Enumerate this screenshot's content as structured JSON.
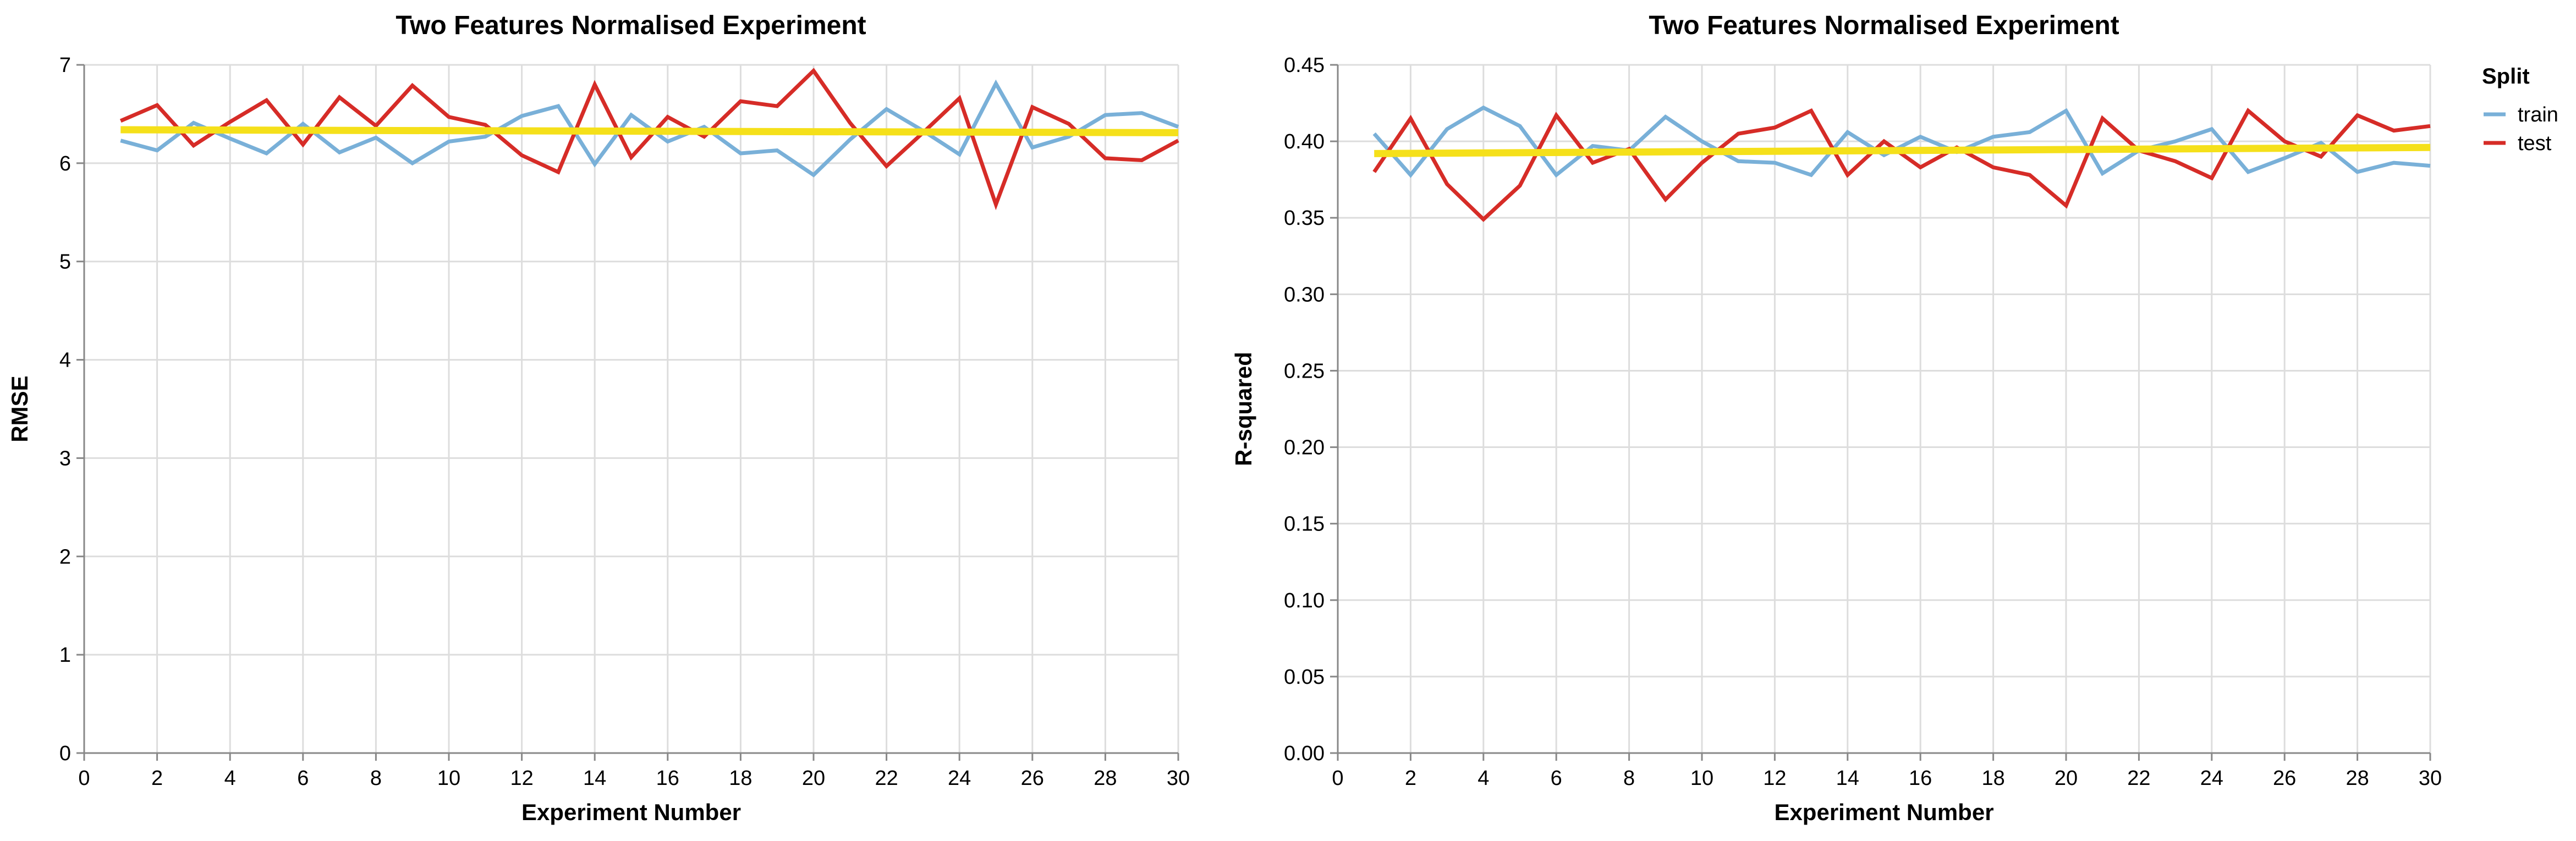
{
  "chart_data": [
    {
      "type": "line",
      "title": "Two Features Normalised Experiment",
      "xlabel": "Experiment Number",
      "ylabel": "RMSE",
      "xlim": [
        0,
        30
      ],
      "ylim": [
        0,
        7
      ],
      "x_ticks": [
        "0",
        "2",
        "4",
        "6",
        "8",
        "10",
        "12",
        "14",
        "16",
        "18",
        "20",
        "22",
        "24",
        "26",
        "28",
        "30"
      ],
      "y_ticks": [
        "0",
        "1",
        "2",
        "3",
        "4",
        "5",
        "6",
        "7"
      ],
      "grid": true,
      "x": [
        1,
        2,
        3,
        4,
        5,
        6,
        7,
        8,
        9,
        10,
        11,
        12,
        13,
        14,
        15,
        16,
        17,
        18,
        19,
        20,
        21,
        22,
        23,
        24,
        25,
        26,
        27,
        28,
        29,
        30
      ],
      "series": [
        {
          "name": "train",
          "color": "#79b0d8",
          "values": [
            6.23,
            6.13,
            6.41,
            6.25,
            6.1,
            6.4,
            6.11,
            6.26,
            6.0,
            6.22,
            6.27,
            6.48,
            6.58,
            5.99,
            6.49,
            6.22,
            6.37,
            6.1,
            6.13,
            5.88,
            6.24,
            6.55,
            6.33,
            6.09,
            6.81,
            6.16,
            6.27,
            6.49,
            6.51,
            6.37
          ]
        },
        {
          "name": "test",
          "color": "#d62c27",
          "values": [
            6.43,
            6.59,
            6.18,
            6.42,
            6.64,
            6.19,
            6.67,
            6.38,
            6.79,
            6.47,
            6.39,
            6.08,
            5.91,
            6.8,
            6.06,
            6.47,
            6.27,
            6.63,
            6.58,
            6.94,
            6.41,
            5.97,
            6.31,
            6.66,
            5.58,
            6.57,
            6.4,
            6.05,
            6.03,
            6.23
          ]
        }
      ],
      "trend": {
        "color": "#f5e01a",
        "from": [
          1,
          6.34
        ],
        "to": [
          30,
          6.31
        ]
      }
    },
    {
      "type": "line",
      "title": "Two Features Normalised Experiment",
      "xlabel": "Experiment Number",
      "ylabel": "R-squared",
      "xlim": [
        0,
        30
      ],
      "ylim": [
        0,
        0.45
      ],
      "x_ticks": [
        "0",
        "2",
        "4",
        "6",
        "8",
        "10",
        "12",
        "14",
        "16",
        "18",
        "20",
        "22",
        "24",
        "26",
        "28",
        "30"
      ],
      "y_ticks": [
        "0.00",
        "0.05",
        "0.10",
        "0.15",
        "0.20",
        "0.25",
        "0.30",
        "0.35",
        "0.40",
        "0.45"
      ],
      "grid": true,
      "legend": {
        "title": "Split",
        "position": "top-right"
      },
      "x": [
        1,
        2,
        3,
        4,
        5,
        6,
        7,
        8,
        9,
        10,
        11,
        12,
        13,
        14,
        15,
        16,
        17,
        18,
        19,
        20,
        21,
        22,
        23,
        24,
        25,
        26,
        27,
        28,
        29,
        30
      ],
      "series": [
        {
          "name": "train",
          "color": "#79b0d8",
          "values": [
            0.405,
            0.378,
            0.408,
            0.422,
            0.41,
            0.378,
            0.397,
            0.394,
            0.416,
            0.4,
            0.387,
            0.386,
            0.378,
            0.406,
            0.391,
            0.403,
            0.393,
            0.403,
            0.406,
            0.42,
            0.379,
            0.394,
            0.4,
            0.408,
            0.38,
            0.389,
            0.399,
            0.38,
            0.386,
            0.384
          ]
        },
        {
          "name": "test",
          "color": "#d62c27",
          "values": [
            0.38,
            0.415,
            0.372,
            0.349,
            0.371,
            0.417,
            0.386,
            0.395,
            0.362,
            0.386,
            0.405,
            0.409,
            0.42,
            0.378,
            0.4,
            0.383,
            0.396,
            0.383,
            0.378,
            0.358,
            0.415,
            0.394,
            0.387,
            0.376,
            0.42,
            0.4,
            0.39,
            0.417,
            0.407,
            0.41
          ]
        }
      ],
      "trend": {
        "color": "#f5e01a",
        "from": [
          1,
          0.392
        ],
        "to": [
          30,
          0.396
        ]
      }
    }
  ]
}
